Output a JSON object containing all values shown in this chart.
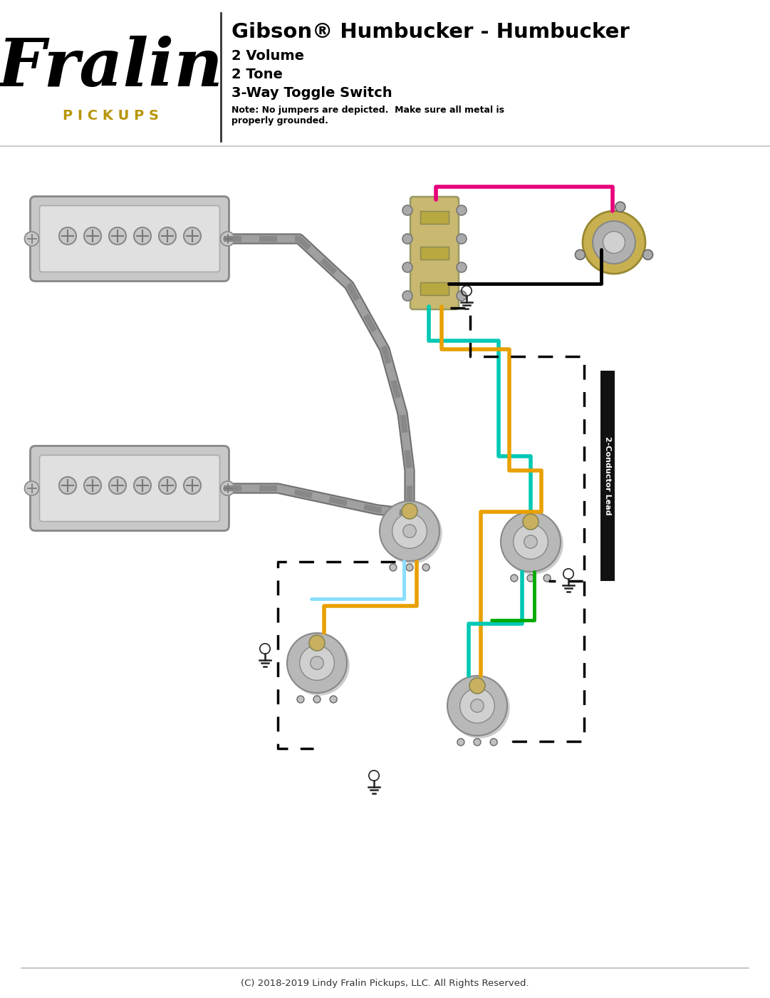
{
  "title": "Gibson® Humbucker - Humbucker",
  "subtitle_lines": [
    "2 Volume",
    "2 Tone",
    "3-Way Toggle Switch"
  ],
  "note": "Note: No jumpers are depicted.  Make sure all metal is\nproperly grounded.",
  "footer": "(C) 2018-2019 Lindy Fralin Pickups, LLC. All Rights Reserved.",
  "fralin_text": "Fralin",
  "pickups_text": "P I C K U P S",
  "conductor_label": "2-Conductor Lead",
  "bg_color": "#ffffff",
  "title_color": "#000000",
  "fralin_color": "#000000",
  "pickups_color": "#b8960c",
  "wire_gray": "#888888",
  "wire_pink": "#e8007a",
  "wire_teal": "#00c8b4",
  "wire_orange": "#e8a000",
  "wire_black": "#000000",
  "wire_green": "#00aa00",
  "wire_red": "#cc0000",
  "conductor_black": "#111111",
  "pickup_fill": "#d0d0d0",
  "pickup_stroke": "#888888",
  "pot_fill": "#b8b8b8",
  "switch_fill": "#c8b870",
  "jack_fill": "#c8b060",
  "ground_color": "#222222",
  "screw_color": "#999999",
  "braided_color": "#909090"
}
